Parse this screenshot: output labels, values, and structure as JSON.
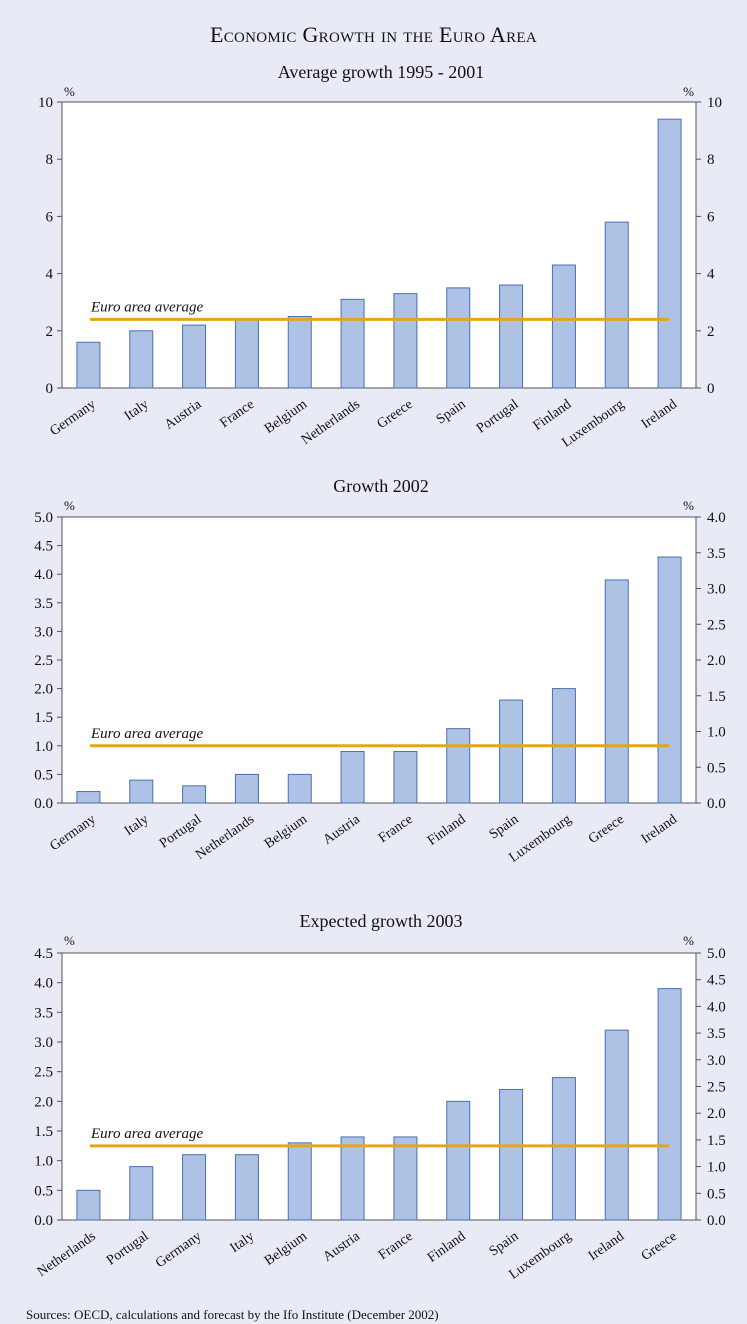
{
  "main_title": "Economic Growth in the Euro Area",
  "source": "Sources: OECD, calculations and forecast by the Ifo Institute (December 2002)",
  "colors": {
    "bar_fill": "#aec2e6",
    "bar_stroke": "#4a6fb0",
    "average_line": "#e2a61e",
    "background": "#e8ebf6"
  },
  "chart_data": [
    {
      "type": "bar",
      "title": "Average growth 1995 - 2001",
      "categories": [
        "Germany",
        "Italy",
        "Austria",
        "France",
        "Belgium",
        "Netherlands",
        "Greece",
        "Spain",
        "Portugal",
        "Finland",
        "Luxembourg",
        "Ireland"
      ],
      "values": [
        1.6,
        2.0,
        2.2,
        2.4,
        2.5,
        3.1,
        3.3,
        3.5,
        3.6,
        4.3,
        5.8,
        9.4
      ],
      "ylim": [
        0,
        10
      ],
      "yticks": [
        "0",
        "2",
        "4",
        "6",
        "8",
        "10"
      ],
      "right_ylim": [
        0,
        10
      ],
      "right_yticks": [
        "0",
        "2",
        "4",
        "6",
        "8",
        "10"
      ],
      "unit_left": "%",
      "unit_right": "%",
      "average": 2.4,
      "average_label": "Euro area average",
      "grid": false
    },
    {
      "type": "bar",
      "title": "Growth 2002",
      "categories": [
        "Germany",
        "Italy",
        "Portugal",
        "Netherlands",
        "Belgium",
        "Austria",
        "France",
        "Finland",
        "Spain",
        "Luxembourg",
        "Greece",
        "Ireland"
      ],
      "values": [
        0.2,
        0.4,
        0.3,
        0.5,
        0.5,
        0.9,
        0.9,
        1.3,
        1.8,
        2.0,
        3.9,
        4.3
      ],
      "ylim": [
        0,
        5
      ],
      "yticks": [
        "0.0",
        "0.5",
        "1.0",
        "1.5",
        "2.0",
        "2.5",
        "3.0",
        "3.5",
        "4.0",
        "4.5",
        "5.0"
      ],
      "right_ylim": [
        0,
        4
      ],
      "right_yticks": [
        "0.0",
        "0.5",
        "1.0",
        "1.5",
        "2.0",
        "2.5",
        "3.0",
        "3.5",
        "4.0"
      ],
      "unit_left": "%",
      "unit_right": "%",
      "average": 1.0,
      "average_label": "Euro area average",
      "grid": false
    },
    {
      "type": "bar",
      "title": "Expected growth 2003",
      "categories": [
        "Netherlands",
        "Portugal",
        "Germany",
        "Italy",
        "Belgium",
        "Austria",
        "France",
        "Finland",
        "Spain",
        "Luxembourg",
        "Ireland",
        "Greece"
      ],
      "values": [
        0.5,
        0.9,
        1.1,
        1.1,
        1.3,
        1.4,
        1.4,
        2.0,
        2.2,
        2.4,
        3.2,
        3.9
      ],
      "ylim": [
        0,
        4.5
      ],
      "yticks": [
        "0.0",
        "0.5",
        "1.0",
        "1.5",
        "2.0",
        "2.5",
        "3.0",
        "3.5",
        "4.0",
        "4.5"
      ],
      "right_ylim": [
        0,
        5
      ],
      "right_yticks": [
        "0.0",
        "0.5",
        "1.0",
        "1.5",
        "2.0",
        "2.5",
        "3.0",
        "3.5",
        "4.0",
        "4.5",
        "5.0"
      ],
      "unit_left": "%",
      "unit_right": "%",
      "average": 1.25,
      "average_label": "Euro area average",
      "grid": false
    }
  ]
}
